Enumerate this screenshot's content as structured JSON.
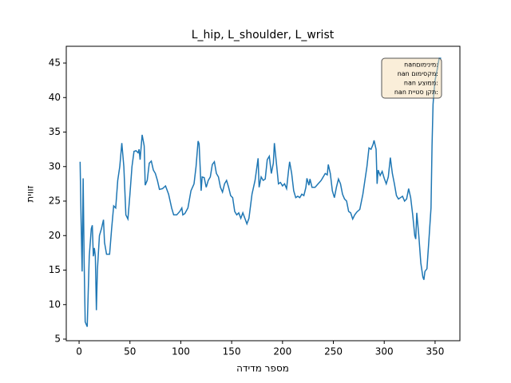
{
  "chart_data": {
    "type": "line",
    "title": "L_hip, L_shoulder, L_wrist",
    "x_label": "מספר מדידה",
    "y_label": "זווית",
    "annotation": [
      "nanםומינימ:",
      "nan םומיסקמ:",
      "nan עצוממ:",
      "nan תייטס ןקת:"
    ],
    "x": [
      1,
      2,
      3,
      4,
      5,
      6,
      8,
      10,
      12,
      13,
      14,
      15,
      16,
      17,
      18,
      20,
      22,
      24,
      25,
      27,
      30,
      32,
      34,
      36,
      38,
      40,
      42,
      44,
      46,
      48,
      50,
      52,
      54,
      56,
      58,
      59,
      60,
      62,
      64,
      65,
      67,
      69,
      71,
      73,
      75,
      77,
      79,
      82,
      85,
      88,
      91,
      93,
      96,
      99,
      101,
      102,
      104,
      107,
      110,
      113,
      115,
      117,
      118,
      119,
      120,
      121,
      123,
      125,
      127,
      129,
      131,
      133,
      135,
      137,
      139,
      141,
      143,
      145,
      147,
      149,
      151,
      153,
      155,
      157,
      159,
      161,
      163,
      165,
      167,
      170,
      173,
      176,
      177,
      179,
      181,
      183,
      185,
      187,
      189,
      191,
      192,
      194,
      196,
      198,
      200,
      202,
      204,
      206,
      207,
      209,
      211,
      213,
      215,
      217,
      219,
      221,
      223,
      224,
      226,
      227,
      229,
      232,
      235,
      238,
      240,
      242,
      244,
      245,
      247,
      249,
      251,
      253,
      255,
      257,
      259,
      261,
      263,
      265,
      267,
      269,
      271,
      273,
      276,
      279,
      281,
      283,
      285,
      287,
      289,
      290,
      292,
      293,
      294,
      296,
      298,
      300,
      302,
      304,
      306,
      308,
      310,
      312,
      314,
      316,
      318,
      320,
      322,
      324,
      326,
      328,
      330,
      331,
      332,
      334,
      336,
      338,
      339,
      340,
      342,
      344,
      346,
      347,
      348,
      349,
      350,
      352,
      354,
      356
    ],
    "series": [
      {
        "color": "#1f77b4",
        "values": [
          30.7,
          22,
          14.8,
          28.3,
          16,
          7.5,
          6.8,
          17,
          21,
          21.5,
          17,
          18.2,
          17,
          9.2,
          15,
          20,
          21,
          22.3,
          19,
          17.3,
          17.3,
          21,
          24.3,
          24,
          28,
          30,
          33.4,
          30,
          23,
          22.4,
          26,
          30,
          32.2,
          32.3,
          32,
          32.5,
          31,
          34.6,
          33,
          27.3,
          28,
          30.5,
          30.8,
          29.5,
          29,
          28,
          26.7,
          26.8,
          27.2,
          26,
          24,
          23,
          23,
          23.5,
          24,
          23,
          23.2,
          24,
          26.5,
          27.5,
          30,
          33.7,
          33.3,
          30,
          26.5,
          28.5,
          28.4,
          27,
          28,
          28.5,
          30.3,
          30.7,
          29,
          28.5,
          27,
          26.3,
          27.5,
          28,
          27,
          25.8,
          25.5,
          23.5,
          23,
          23.3,
          22.5,
          23.3,
          22.5,
          21.7,
          22.5,
          26,
          28,
          31.2,
          27,
          28.5,
          28,
          28.2,
          31,
          31.5,
          29,
          30.5,
          33.4,
          30.5,
          27.5,
          27.7,
          27.2,
          27.5,
          26.8,
          29.5,
          30.7,
          29,
          26.5,
          25.5,
          25.7,
          25.5,
          26,
          25.8,
          27,
          28.3,
          27.3,
          28.2,
          27,
          27,
          27.5,
          28,
          28.5,
          29,
          28.8,
          30.3,
          29,
          26.5,
          25.5,
          27,
          28.2,
          27.5,
          26,
          25.3,
          25,
          23.5,
          23.3,
          22.4,
          23,
          23.4,
          23.8,
          26,
          28,
          30,
          32.7,
          32.5,
          33.2,
          33.8,
          32.5,
          27.5,
          29.5,
          28.7,
          29.3,
          28.3,
          27.5,
          28.5,
          31.3,
          29,
          27.5,
          25.8,
          25.3,
          25.5,
          25.7,
          25,
          25.3,
          26.8,
          25.5,
          23,
          20,
          19.5,
          23.3,
          20,
          16,
          14,
          13.6,
          14.8,
          15.2,
          19.5,
          24,
          33,
          39,
          41,
          42.5,
          44,
          45.7,
          45.7
        ]
      }
    ],
    "xlim": [
      -12.6,
      374.4
    ],
    "ylim": [
      4.77,
      47.43
    ],
    "xticks": [
      0,
      50,
      100,
      150,
      200,
      250,
      300,
      350
    ],
    "yticks": [
      5,
      10,
      15,
      20,
      25,
      30,
      35,
      40,
      45
    ]
  }
}
